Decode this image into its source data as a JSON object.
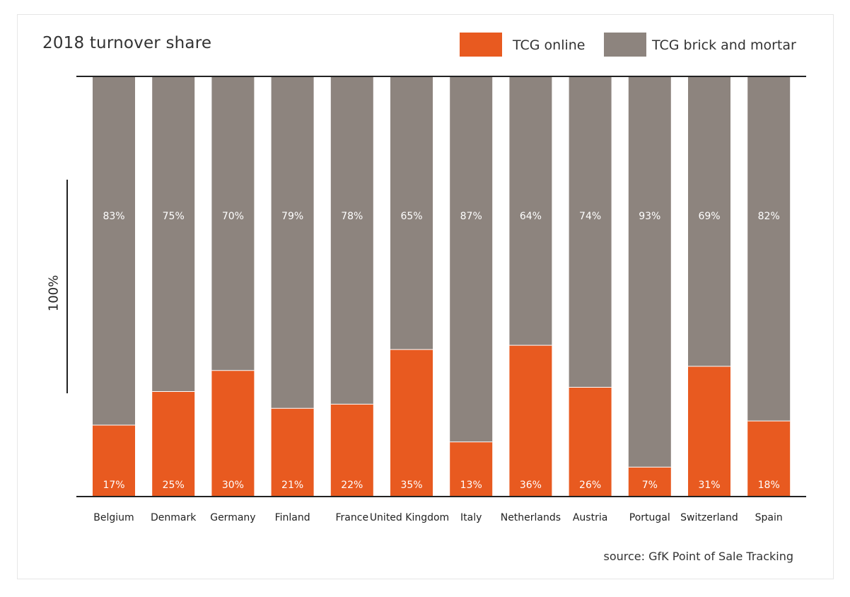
{
  "chart_data": {
    "type": "bar",
    "stacked": true,
    "title": "2018 turnover share",
    "ylabel": "100%",
    "categories": [
      "Belgium",
      "Denmark",
      "Germany",
      "Finland",
      "France",
      "United Kingdom",
      "Italy",
      "Netherlands",
      "Austria",
      "Portugal",
      "Switzerland",
      "Spain"
    ],
    "series": [
      {
        "name": "TCG online",
        "color": "#e85a20",
        "values": [
          17,
          25,
          30,
          21,
          22,
          35,
          13,
          36,
          26,
          7,
          31,
          18
        ]
      },
      {
        "name": "TCG brick and mortar",
        "color": "#8d847e",
        "values": [
          83,
          75,
          70,
          79,
          78,
          65,
          87,
          64,
          74,
          93,
          69,
          82
        ]
      }
    ],
    "ylim": [
      0,
      100
    ],
    "value_suffix": "%",
    "grid": false,
    "legend_position": "top-right",
    "source": "source: GfK Point of Sale Tracking"
  }
}
